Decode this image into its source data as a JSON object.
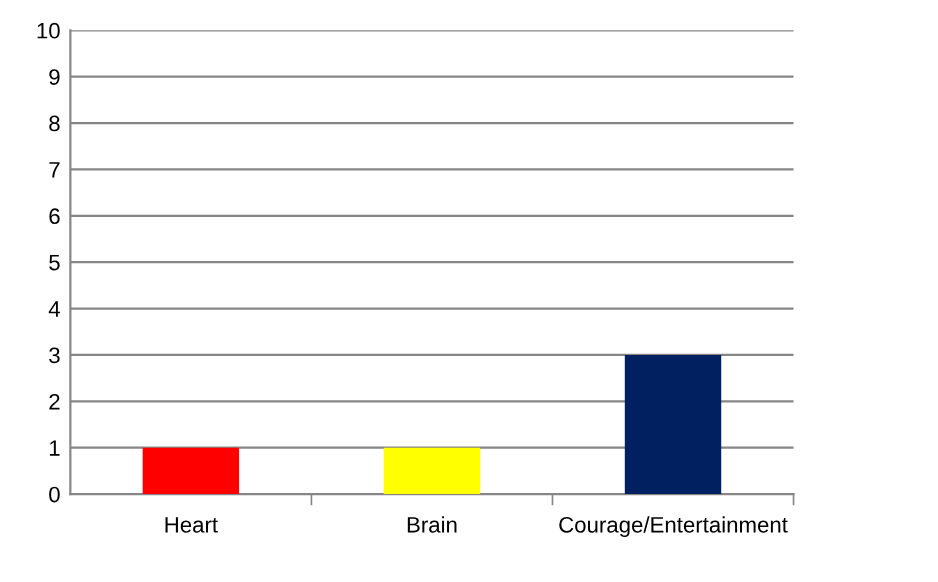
{
  "chart_data": {
    "type": "bar",
    "categories": [
      "Heart",
      "Brain",
      "Courage/Entertainment"
    ],
    "values": [
      1,
      1,
      3
    ],
    "colors": [
      "#ff0000",
      "#ffff00",
      "#002060"
    ],
    "ylim": [
      0,
      10
    ],
    "yticks": [
      0,
      1,
      2,
      3,
      4,
      5,
      6,
      7,
      8,
      9,
      10
    ],
    "grid": "y",
    "legend": false
  }
}
